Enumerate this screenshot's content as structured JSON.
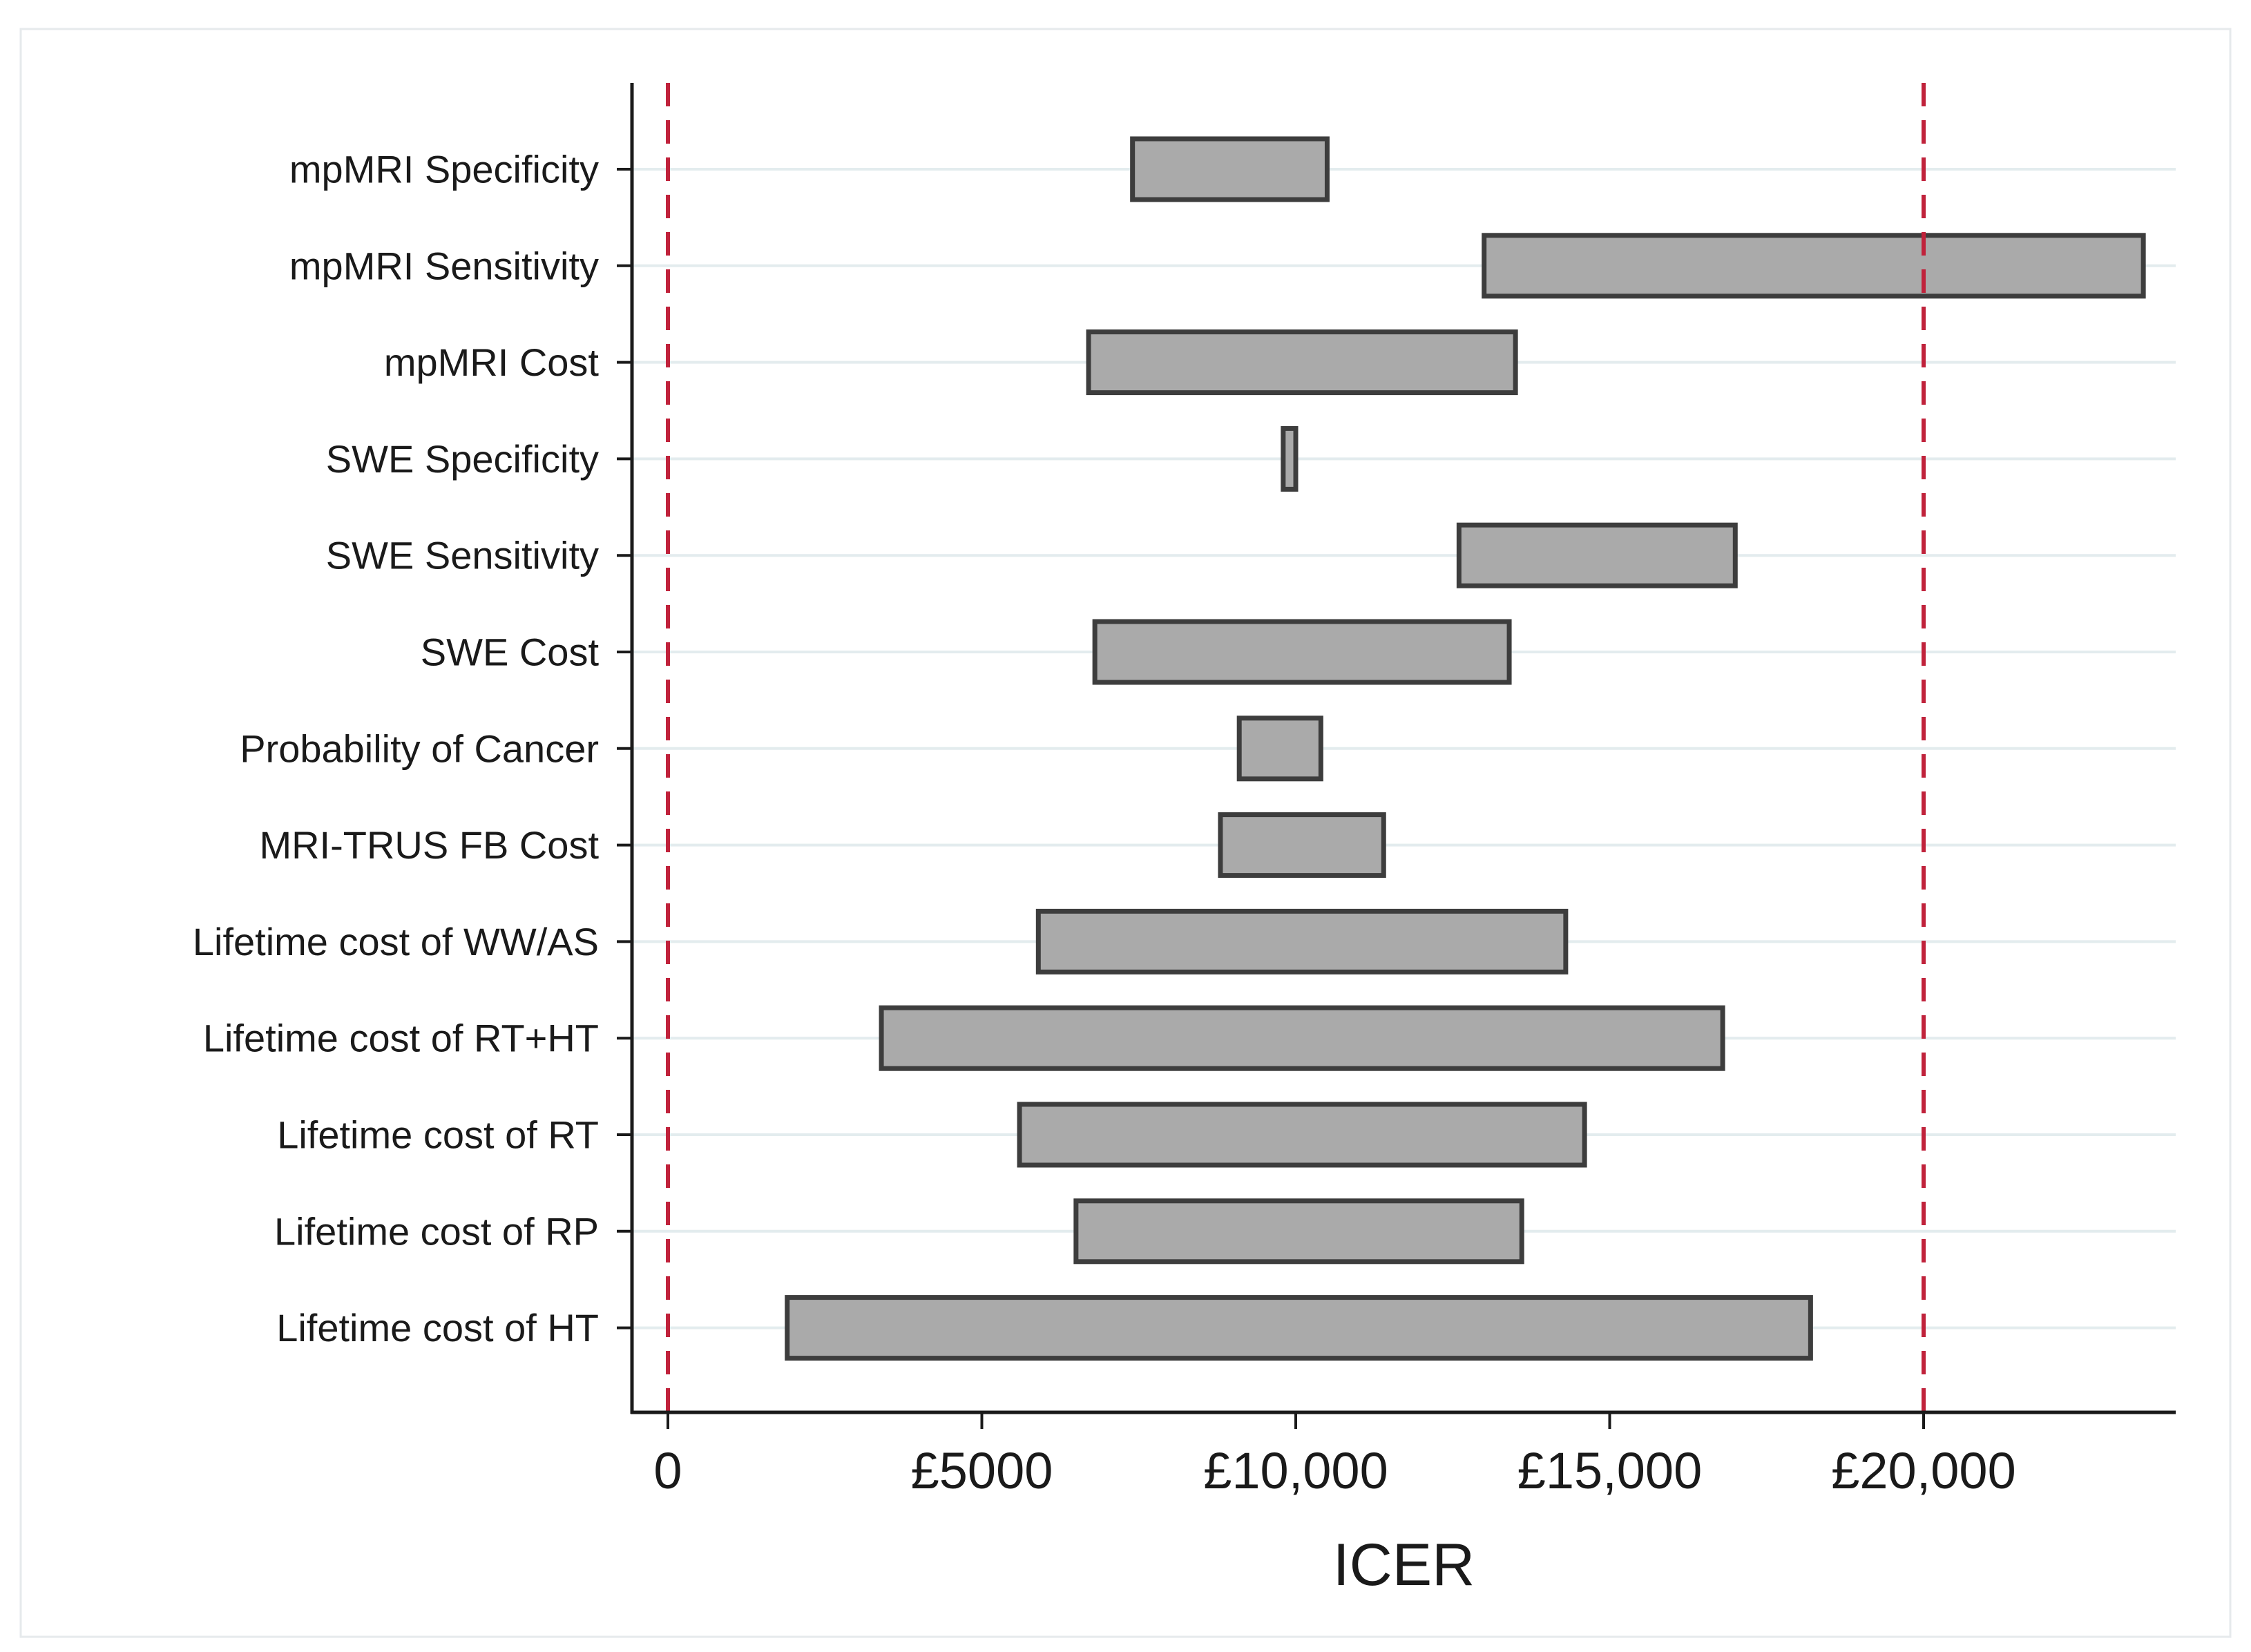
{
  "chart_data": {
    "type": "bar",
    "orientation": "horizontal",
    "style": "tornado",
    "title": "",
    "xlabel": "ICER",
    "ylabel": "",
    "xlim": [
      -600,
      24500
    ],
    "xticks": [
      0,
      5000,
      10000,
      15000,
      20000
    ],
    "xtick_labels": [
      "0",
      "£5000",
      "£10,000",
      "£15,000",
      "£20,000"
    ],
    "reference_lines": [
      0,
      20000
    ],
    "reference_line_color": "#c0223b",
    "bar_fill": "#aaaaaa",
    "bar_stroke": "#3d3d3d",
    "grid": "horizontal",
    "legend": "none",
    "categories": [
      "mpMRI Specificity",
      "mpMRI Sensitivity",
      "mpMRI Cost",
      "SWE Specificity",
      "SWE Sensitivity",
      "SWE Cost",
      "Probability of Cancer",
      "MRI-TRUS FB Cost",
      "Lifetime cost of WW/AS",
      "Lifetime cost of RT+HT",
      "Lifetime cost of RT",
      "Lifetime cost of RP",
      "Lifetime cost of HT"
    ],
    "low": [
      7400,
      13000,
      6700,
      9800,
      12600,
      6800,
      9100,
      8800,
      5900,
      3400,
      5600,
      6500,
      1900
    ],
    "high": [
      10500,
      23500,
      13500,
      10000,
      17000,
      13400,
      10400,
      11400,
      14300,
      16800,
      14600,
      13600,
      18200
    ]
  }
}
